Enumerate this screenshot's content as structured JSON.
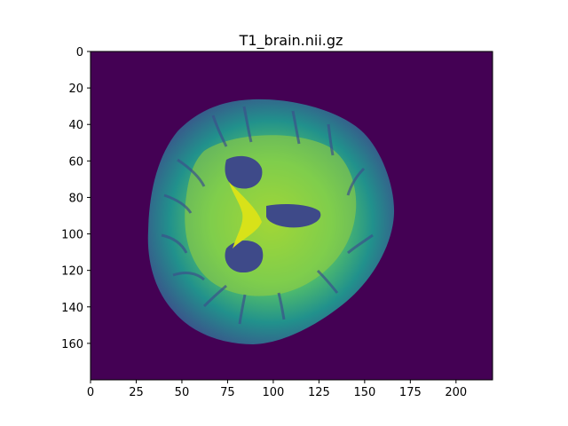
{
  "figure": {
    "title": "T1_brain.nii.gz",
    "image": {
      "description_colormap": "viridis",
      "background_color": "#440154",
      "shape": [
        180,
        220
      ]
    },
    "x_axis": {
      "ticks": [
        "0",
        "25",
        "50",
        "75",
        "100",
        "125",
        "150",
        "175",
        "200"
      ],
      "tick_values": [
        0,
        25,
        50,
        75,
        100,
        125,
        150,
        175,
        200
      ],
      "range": [
        0,
        220
      ]
    },
    "y_axis": {
      "ticks": [
        "0",
        "20",
        "40",
        "60",
        "80",
        "100",
        "120",
        "140",
        "160"
      ],
      "tick_values": [
        0,
        20,
        40,
        60,
        80,
        100,
        120,
        140,
        160
      ],
      "range": [
        0,
        180
      ]
    }
  }
}
